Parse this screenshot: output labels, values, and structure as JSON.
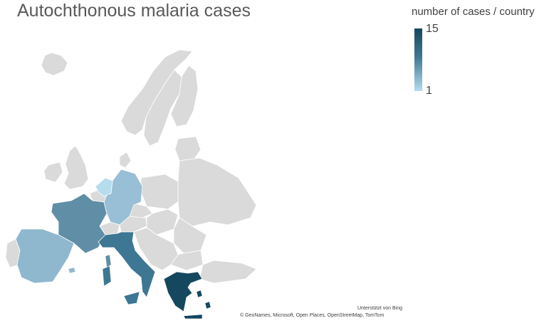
{
  "title": "Autochthonous malaria cases",
  "legend": {
    "title": "number of cases / country",
    "max_label": "15",
    "min_label": "1",
    "color_high": "#15485f",
    "color_low": "#b7dcee"
  },
  "attribution": {
    "line1": "Unterstützt von Bing",
    "line2": "© GeoNames, Microsoft, Open Places, OpenStreetMap, TomTom"
  },
  "colors": {
    "no_data": "#dadada",
    "border": "#ffffff",
    "greece": "#15485f",
    "italy": "#3e7793",
    "france": "#5f8ea6",
    "spain": "#8fb8cf",
    "germany": "#98bfd5",
    "netherlands": "#b7dcee"
  }
}
